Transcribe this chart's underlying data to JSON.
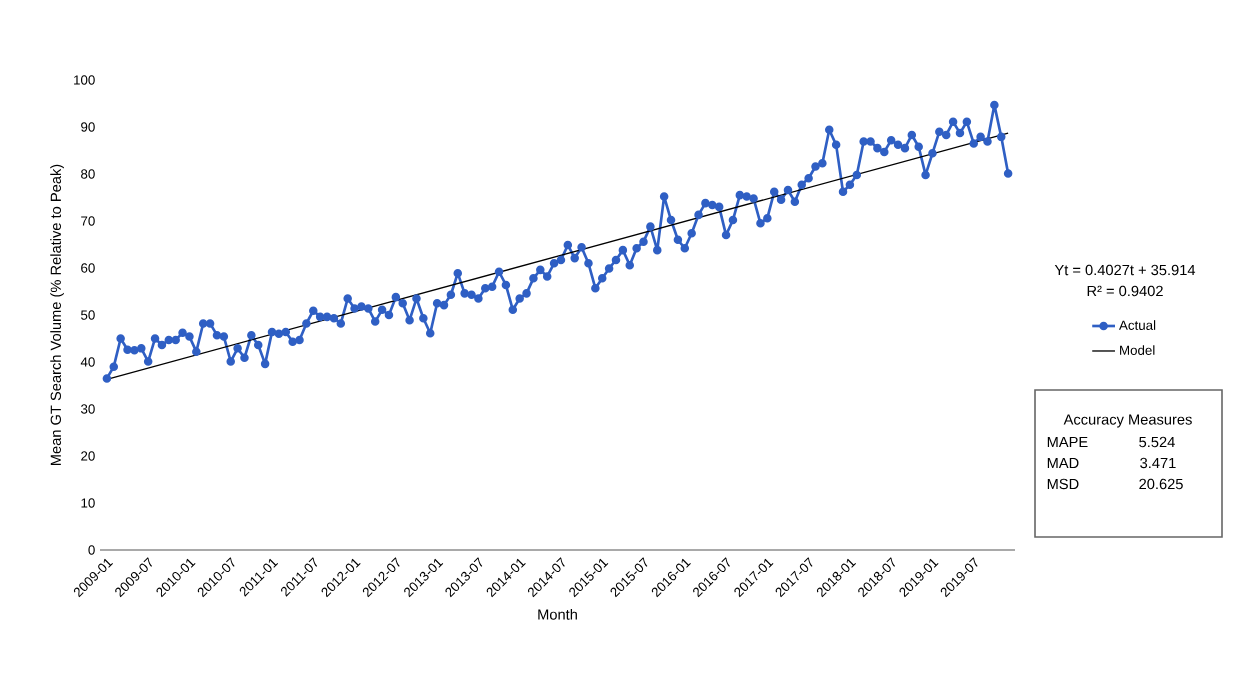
{
  "chart_data": {
    "type": "line",
    "xlabel": "Month",
    "ylabel": "Mean GT Search Volume (% Relative to Peak)",
    "x": [
      "2009-01",
      "2009-02",
      "2009-03",
      "2009-04",
      "2009-05",
      "2009-06",
      "2009-07",
      "2009-08",
      "2009-09",
      "2009-10",
      "2009-11",
      "2009-12",
      "2010-01",
      "2010-02",
      "2010-03",
      "2010-04",
      "2010-05",
      "2010-06",
      "2010-07",
      "2010-08",
      "2010-09",
      "2010-10",
      "2010-11",
      "2010-12",
      "2011-01",
      "2011-02",
      "2011-03",
      "2011-04",
      "2011-05",
      "2011-06",
      "2011-07",
      "2011-08",
      "2011-09",
      "2011-10",
      "2011-11",
      "2011-12",
      "2012-01",
      "2012-02",
      "2012-03",
      "2012-04",
      "2012-05",
      "2012-06",
      "2012-07",
      "2012-08",
      "2012-09",
      "2012-10",
      "2012-11",
      "2012-12",
      "2013-01",
      "2013-02",
      "2013-03",
      "2013-04",
      "2013-05",
      "2013-06",
      "2013-07",
      "2013-08",
      "2013-09",
      "2013-10",
      "2013-11",
      "2013-12",
      "2014-01",
      "2014-02",
      "2014-03",
      "2014-04",
      "2014-05",
      "2014-06",
      "2014-07",
      "2014-08",
      "2014-09",
      "2014-10",
      "2014-11",
      "2014-12",
      "2015-01",
      "2015-02",
      "2015-03",
      "2015-04",
      "2015-05",
      "2015-06",
      "2015-07",
      "2015-08",
      "2015-09",
      "2015-10",
      "2015-11",
      "2015-12",
      "2016-01",
      "2016-02",
      "2016-03",
      "2016-04",
      "2016-05",
      "2016-06",
      "2016-07",
      "2016-08",
      "2016-09",
      "2016-10",
      "2016-11",
      "2016-12",
      "2017-01",
      "2017-02",
      "2017-03",
      "2017-04",
      "2017-05",
      "2017-06",
      "2017-07",
      "2017-08",
      "2017-09",
      "2017-10",
      "2017-11",
      "2017-12",
      "2018-01",
      "2018-02",
      "2018-03",
      "2018-04",
      "2018-05",
      "2018-06",
      "2018-07",
      "2018-08",
      "2018-09",
      "2018-10",
      "2018-11",
      "2018-12",
      "2019-01",
      "2019-02",
      "2019-03",
      "2019-04",
      "2019-05",
      "2019-06",
      "2019-07",
      "2019-08",
      "2019-09",
      "2019-10",
      "2019-11",
      "2019-12"
    ],
    "series": [
      {
        "name": "Actual",
        "color": "#2f5fc4",
        "marker": "circle",
        "values": [
          36.5,
          39.0,
          45.0,
          42.6,
          42.5,
          42.9,
          40.1,
          45.0,
          43.6,
          44.7,
          44.7,
          46.2,
          45.4,
          42.2,
          48.2,
          48.2,
          45.7,
          45.4,
          40.1,
          42.9,
          40.9,
          45.7,
          43.6,
          39.6,
          46.4,
          46.0,
          46.4,
          44.3,
          44.7,
          48.2,
          50.9,
          49.6,
          49.6,
          49.3,
          48.2,
          53.5,
          51.4,
          51.8,
          51.4,
          48.6,
          51.1,
          50.0,
          53.8,
          52.5,
          48.9,
          53.5,
          49.3,
          46.1,
          52.5,
          52.1,
          54.3,
          58.9,
          54.6,
          54.3,
          53.5,
          55.7,
          56.0,
          59.2,
          56.4,
          51.1,
          53.5,
          54.6,
          57.8,
          59.6,
          58.2,
          61.0,
          61.7,
          64.9,
          62.1,
          64.4,
          61.0,
          55.7,
          57.8,
          59.9,
          61.7,
          63.8,
          60.6,
          64.2,
          65.6,
          68.8,
          63.8,
          75.2,
          70.2,
          66.0,
          64.2,
          67.4,
          71.3,
          73.8,
          73.4,
          73.0,
          67.0,
          70.2,
          75.5,
          75.2,
          74.8,
          69.5,
          70.6,
          76.2,
          74.5,
          76.6,
          74.1,
          77.7,
          79.1,
          81.6,
          82.3,
          89.4,
          86.2,
          76.2,
          77.7,
          79.8,
          86.9,
          86.9,
          85.5,
          84.7,
          87.2,
          86.2,
          85.5,
          88.3,
          85.8,
          79.8,
          84.4,
          89.0,
          88.3,
          91.1,
          88.7,
          91.1,
          86.5,
          87.9,
          86.9,
          94.7,
          87.9,
          80.1
        ]
      },
      {
        "name": "Model",
        "color": "#000000",
        "marker": "none",
        "x": [
          "2009-01",
          "2019-12"
        ],
        "values": [
          36.3,
          88.7
        ]
      }
    ],
    "xlim": [
      "2008-12",
      "2020-01"
    ],
    "xticks": [
      "2009-01",
      "2009-07",
      "2010-01",
      "2010-07",
      "2011-01",
      "2011-07",
      "2012-01",
      "2012-07",
      "2013-01",
      "2013-07",
      "2014-01",
      "2014-07",
      "2015-01",
      "2015-07",
      "2016-01",
      "2016-07",
      "2017-01",
      "2017-07",
      "2018-01",
      "2018-07",
      "2019-01",
      "2019-07"
    ],
    "ylim": [
      0,
      100
    ],
    "yticks": [
      0,
      10,
      20,
      30,
      40,
      50,
      60,
      70,
      80,
      90,
      100
    ],
    "legend": "right",
    "annotations": [
      "Yt = 0.4027t + 35.914",
      "R² = 0.9402",
      "Accuracy Measures",
      "MAPE",
      "5.524",
      "MAD",
      "3.471",
      "MSD",
      "20.625"
    ]
  }
}
